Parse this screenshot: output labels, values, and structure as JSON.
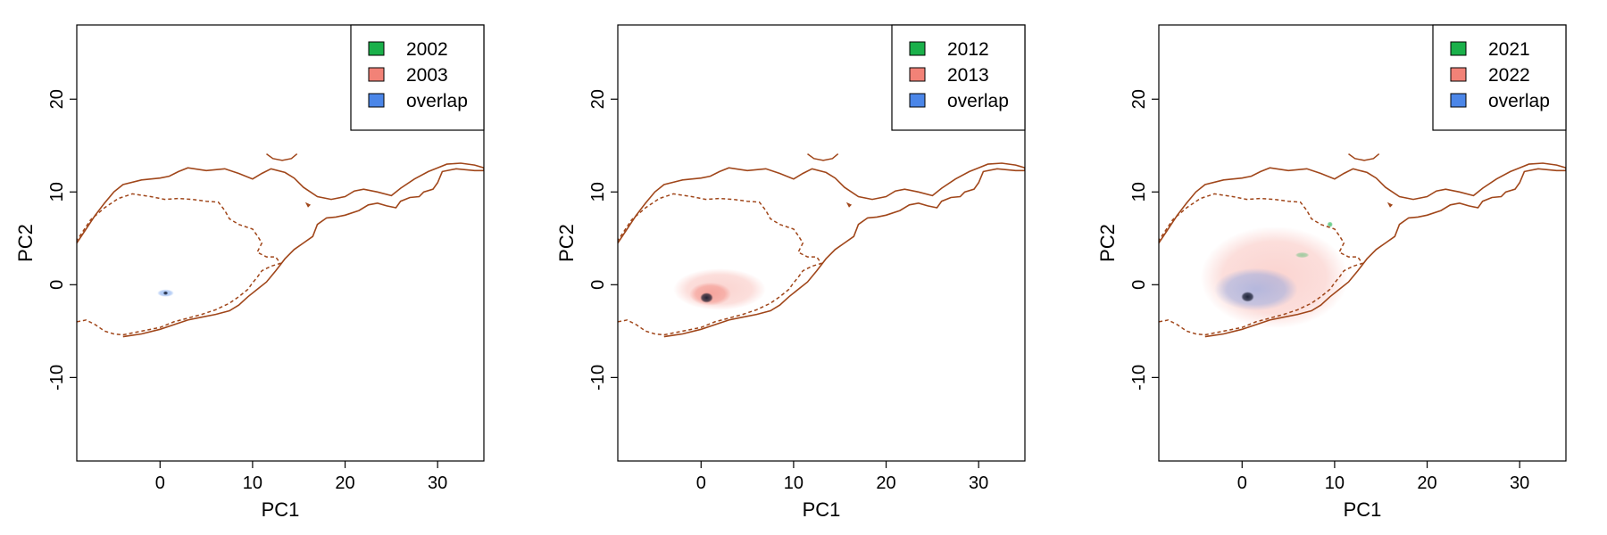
{
  "chart_data": [
    {
      "type": "heatmap",
      "xlabel": "PC1",
      "ylabel": "PC2",
      "xlim": [
        -9,
        35
      ],
      "ylim": [
        -19,
        28
      ],
      "xticks": [
        "0",
        "10",
        "20",
        "30"
      ],
      "yticks": [
        "-10",
        "0",
        "10",
        "20"
      ],
      "legend": [
        {
          "label": "2002",
          "color": "#1ab04a"
        },
        {
          "label": "2003",
          "color": "#f28277"
        },
        {
          "label": "overlap",
          "color": "#4b86e8"
        }
      ],
      "legend_position": "top-right",
      "contour_color": "#a0461a",
      "density": [
        {
          "x": 0.6,
          "y": -0.9,
          "w": 1.8,
          "h": 0.8,
          "kind": "overlap",
          "level": 0.5
        },
        {
          "x": 0.6,
          "y": -0.9,
          "w": 0.5,
          "h": 0.4,
          "kind": "core",
          "level": 0.9
        }
      ]
    },
    {
      "type": "heatmap",
      "xlabel": "PC1",
      "ylabel": "PC2",
      "xlim": [
        -9,
        35
      ],
      "ylim": [
        -19,
        28
      ],
      "xticks": [
        "0",
        "10",
        "20",
        "30"
      ],
      "yticks": [
        "-10",
        "0",
        "10",
        "20"
      ],
      "legend": [
        {
          "label": "2012",
          "color": "#1ab04a"
        },
        {
          "label": "2013",
          "color": "#f28277"
        },
        {
          "label": "overlap",
          "color": "#4b86e8"
        }
      ],
      "legend_position": "top-right",
      "contour_color": "#a0461a",
      "density": [
        {
          "x": 2.0,
          "y": -0.5,
          "w": 10.0,
          "h": 4.5,
          "kind": "year2",
          "level": 0.35
        },
        {
          "x": 1.0,
          "y": -1.0,
          "w": 4.5,
          "h": 2.5,
          "kind": "year2",
          "level": 0.6
        },
        {
          "x": 0.6,
          "y": -1.4,
          "w": 1.4,
          "h": 1.1,
          "kind": "core",
          "level": 0.9
        }
      ]
    },
    {
      "type": "heatmap",
      "xlabel": "PC1",
      "ylabel": "PC2",
      "xlim": [
        -9,
        35
      ],
      "ylim": [
        -19,
        28
      ],
      "xticks": [
        "0",
        "10",
        "20",
        "30"
      ],
      "yticks": [
        "-10",
        "0",
        "10",
        "20"
      ],
      "legend": [
        {
          "label": "2021",
          "color": "#1ab04a"
        },
        {
          "label": "2022",
          "color": "#f28277"
        },
        {
          "label": "overlap",
          "color": "#4b86e8"
        }
      ],
      "legend_position": "top-right",
      "contour_color": "#a0461a",
      "density": [
        {
          "x": 3.5,
          "y": 0.8,
          "w": 16.0,
          "h": 11.0,
          "kind": "year2",
          "level": 0.35
        },
        {
          "x": 1.5,
          "y": -0.5,
          "w": 9.0,
          "h": 4.6,
          "kind": "overlap",
          "level": 0.4
        },
        {
          "x": 0.6,
          "y": -1.3,
          "w": 1.4,
          "h": 1.1,
          "kind": "core",
          "level": 0.9
        },
        {
          "x": 9.5,
          "y": 6.5,
          "w": 0.6,
          "h": 0.6,
          "kind": "year1",
          "level": 0.7
        },
        {
          "x": 6.5,
          "y": 3.2,
          "w": 1.5,
          "h": 0.6,
          "kind": "year1",
          "level": 0.4
        }
      ]
    }
  ]
}
